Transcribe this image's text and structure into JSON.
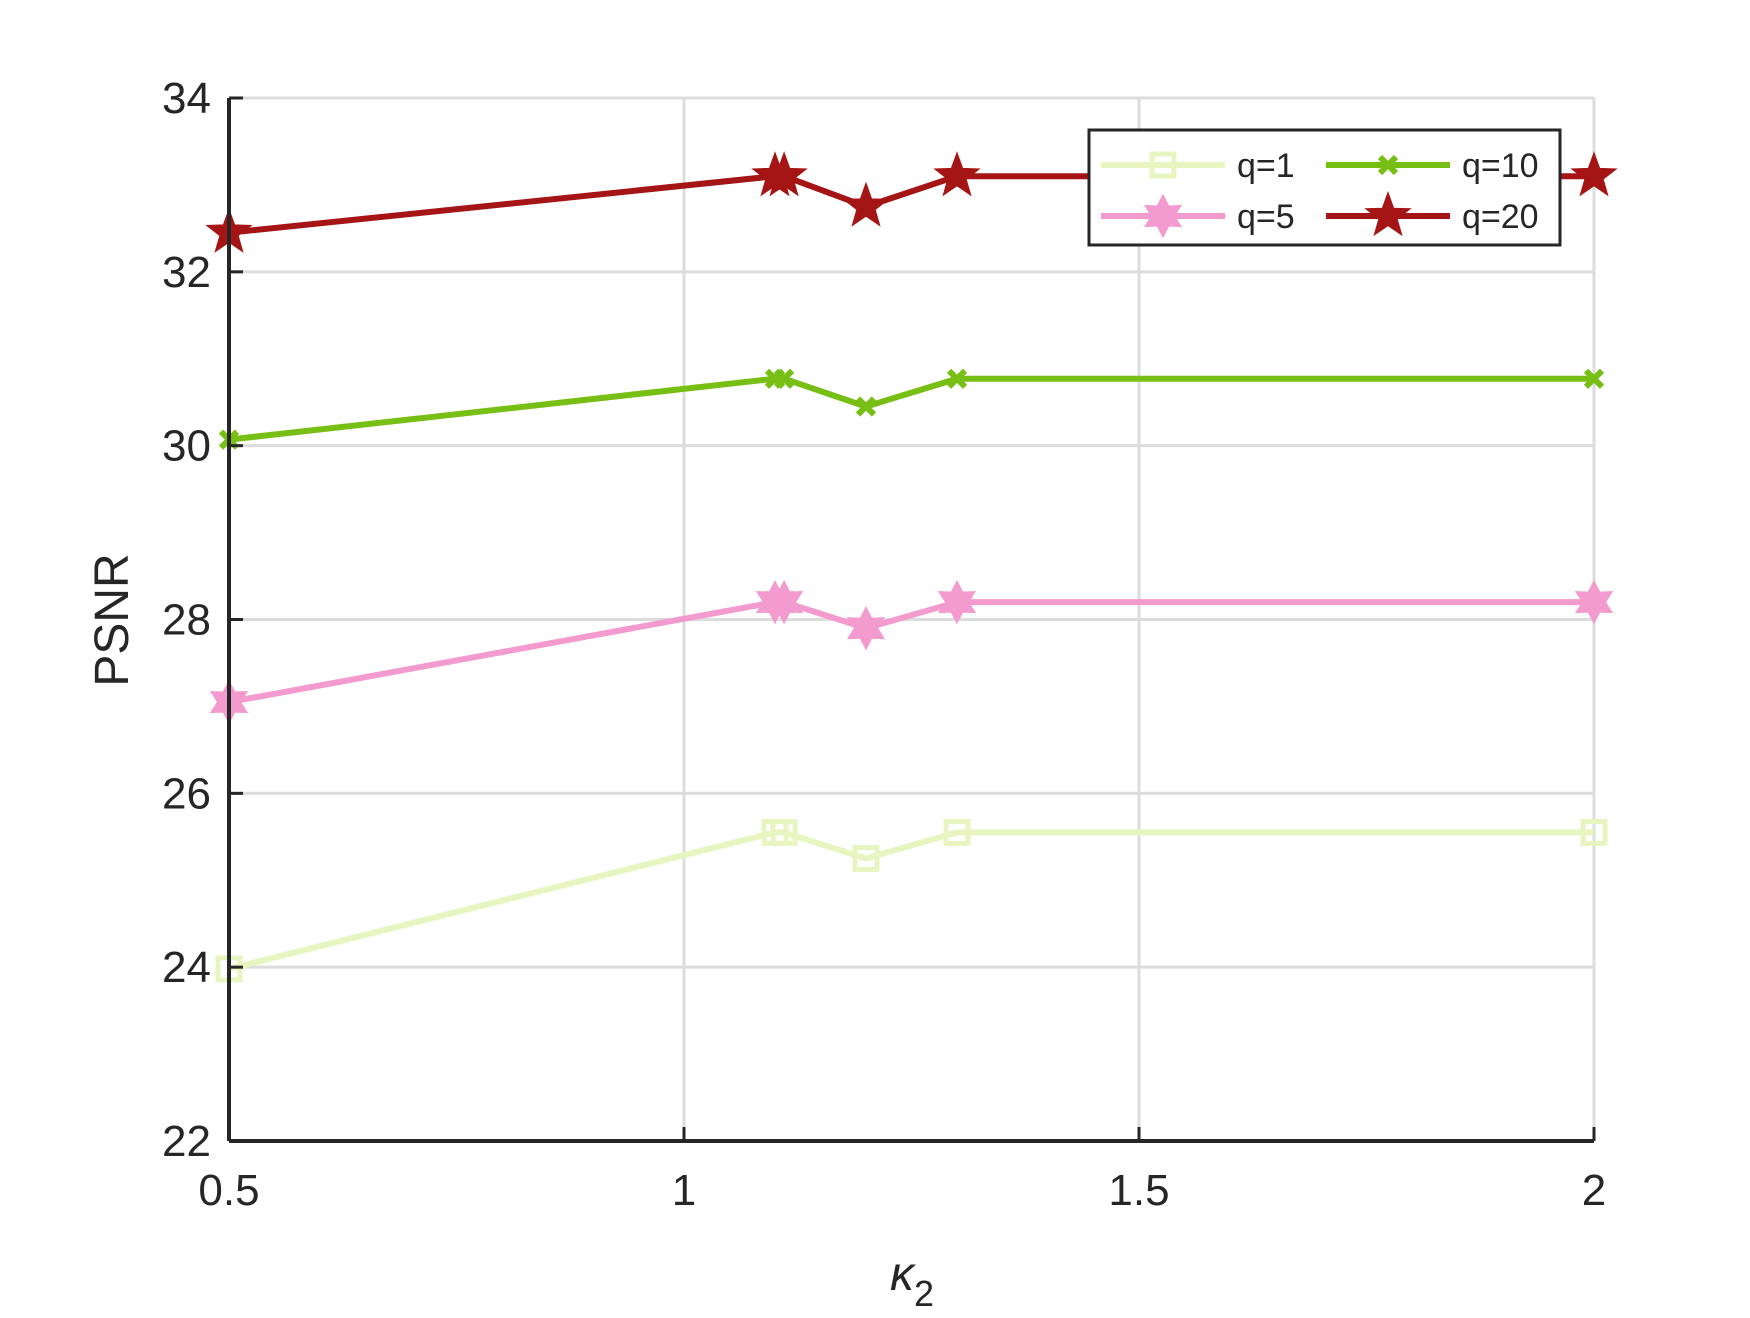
{
  "chart_data": {
    "type": "line",
    "xlabel": "κ",
    "xlabel_subscript": "2",
    "ylabel": "PSNR",
    "xlim": [
      0.5,
      2
    ],
    "ylim": [
      22,
      34
    ],
    "x_ticks": [
      0.5,
      1,
      1.5,
      2
    ],
    "x_tick_labels": [
      "0.5",
      "1",
      "1.5",
      "2"
    ],
    "y_ticks": [
      22,
      24,
      26,
      28,
      30,
      32,
      34
    ],
    "y_tick_labels": [
      "22",
      "24",
      "26",
      "28",
      "30",
      "32",
      "34"
    ],
    "grid": true,
    "legend_position": "top-right",
    "x": [
      0.5,
      1.1,
      1.11,
      1.2,
      1.3,
      2
    ],
    "series": [
      {
        "name": "q=1",
        "color": "#e8f5c0",
        "marker": "square",
        "values": [
          23.98,
          25.55,
          25.55,
          25.25,
          25.55,
          25.55
        ]
      },
      {
        "name": "q=5",
        "color": "#f39bcf",
        "marker": "hexagram",
        "values": [
          27.05,
          28.2,
          28.2,
          27.9,
          28.2,
          28.2
        ]
      },
      {
        "name": "q=10",
        "color": "#77bf14",
        "marker": "x",
        "values": [
          30.07,
          30.77,
          30.77,
          30.45,
          30.77,
          30.77
        ]
      },
      {
        "name": "q=20",
        "color": "#a51515",
        "marker": "star",
        "values": [
          32.45,
          33.1,
          33.1,
          32.75,
          33.1,
          33.1
        ]
      }
    ]
  }
}
